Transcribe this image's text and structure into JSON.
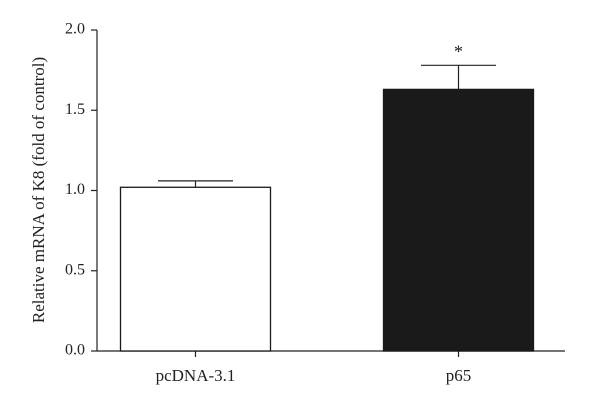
{
  "chart_data": {
    "type": "bar",
    "y_label": "Relative mRNA of K8 (fold of control)",
    "categories": [
      "pcDNA-3.1",
      "p65"
    ],
    "values": [
      1.02,
      1.63
    ],
    "errors": [
      0.04,
      0.15
    ],
    "colors": [
      "#ffffff",
      "#1a1a1a"
    ],
    "significance": [
      null,
      "*"
    ],
    "ylim": [
      0,
      2
    ],
    "yticks": [
      {
        "value": 0,
        "label": "0.0"
      },
      0.5,
      {
        "value": 1,
        "label": "1.0"
      },
      1.5,
      {
        "value": 2,
        "label": "2.0"
      }
    ],
    "grid": false
  }
}
